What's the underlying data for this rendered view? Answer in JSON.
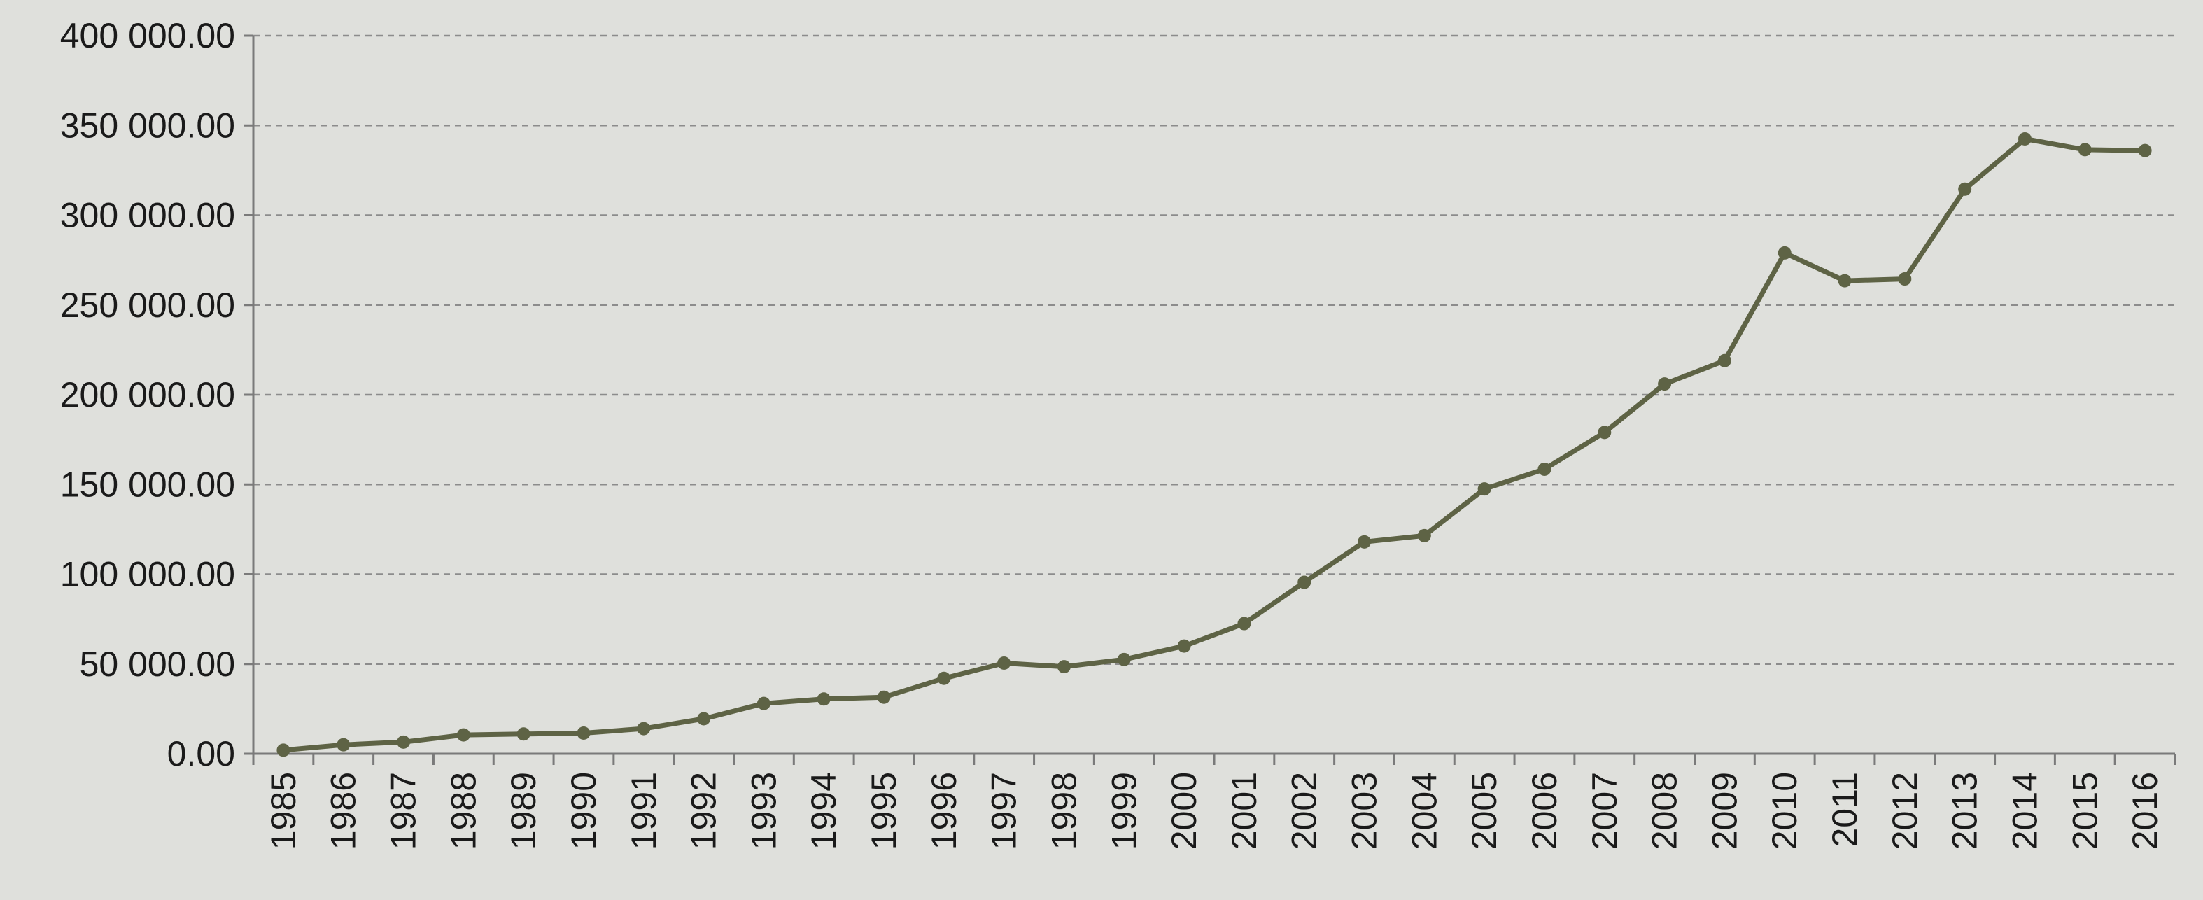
{
  "chart_data": {
    "type": "line",
    "title": "",
    "xlabel": "",
    "ylabel": "",
    "categories": [
      "1985",
      "1986",
      "1987",
      "1988",
      "1989",
      "1990",
      "1991",
      "1992",
      "1993",
      "1994",
      "1995",
      "1996",
      "1997",
      "1998",
      "1999",
      "2000",
      "2001",
      "2002",
      "2003",
      "2004",
      "2005",
      "2006",
      "2007",
      "2008",
      "2009",
      "2010",
      "2011",
      "2012",
      "2013",
      "2014",
      "2015",
      "2016"
    ],
    "series": [
      {
        "values": [
          2000,
          5000,
          6500,
          10500,
          11000,
          11500,
          14000,
          19500,
          28000,
          30500,
          31500,
          42000,
          50500,
          48500,
          52500,
          60000,
          72500,
          95500,
          118000,
          121500,
          147500,
          158500,
          179000,
          206000,
          219000,
          279000,
          263500,
          264500,
          314500,
          342500,
          336500,
          336000
        ]
      }
    ],
    "ylim": [
      0,
      400000
    ],
    "y_ticks": [
      0,
      50000,
      100000,
      150000,
      200000,
      250000,
      300000,
      350000,
      400000
    ],
    "y_tick_labels": [
      "0.00",
      "50 000.00",
      "100 000.00",
      "150 000.00",
      "200 000.00",
      "250 000.00",
      "300 000.00",
      "350 000.00",
      "400 000.00"
    ],
    "grid": true,
    "legend": "none",
    "colors": {
      "background": "#dfe0dc",
      "line": "#5e6345",
      "grid": "#8c8c8c",
      "axis": "#7a7a7a",
      "text": "#1a1a1a"
    }
  }
}
